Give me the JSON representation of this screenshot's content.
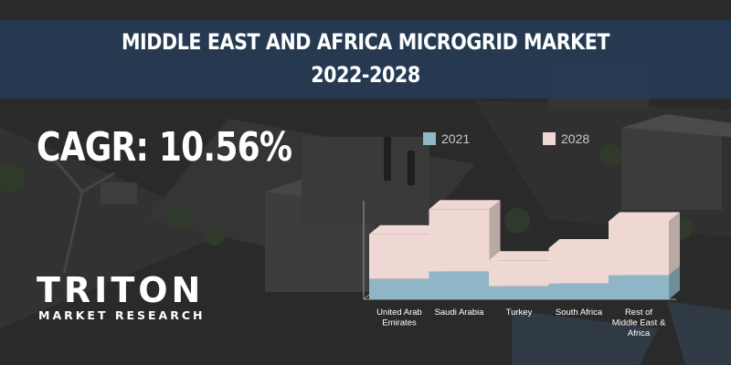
{
  "header": {
    "title_line1": "MIDDLE EAST AND AFRICA MICROGRID MARKET",
    "title_line2": "2022-2028"
  },
  "cagr": "CAGR: 10.56%",
  "brand": {
    "name": "TRITON",
    "tagline": "MARKET RESEARCH"
  },
  "chart_data": {
    "type": "bar",
    "stacked": true,
    "style": "3d",
    "title": "",
    "xlabel": "",
    "ylabel": "",
    "categories": [
      "United Arab\nEmirates",
      "Saudi Arabia",
      "Turkey",
      "South Africa",
      "Rest of\nMiddle East &\nAfrica"
    ],
    "series": [
      {
        "name": "2021",
        "color": "#8fb6c6",
        "values": [
          22,
          30,
          14,
          17,
          26
        ]
      },
      {
        "name": "2028",
        "color": "#efd8d3",
        "values": [
          48,
          67,
          28,
          38,
          58
        ]
      }
    ],
    "ylim": [
      0,
      110
    ],
    "grid": false,
    "legend": "top"
  }
}
